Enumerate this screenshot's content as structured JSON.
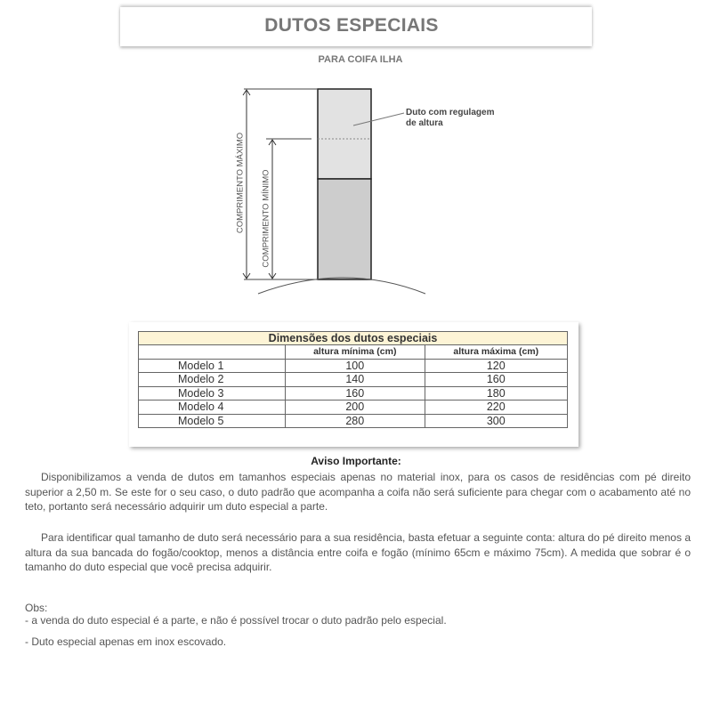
{
  "header": {
    "title": "DUTOS ESPECIAIS",
    "subtitle": "PARA COIFA ILHA"
  },
  "diagram": {
    "label_max": "COMPRIMENTO MÁXIMO",
    "label_min": "COMPRIMENTO MÍNIMO",
    "duct_label_line1": "Duto com regulagem",
    "duct_label_line2": "de altura"
  },
  "table": {
    "caption": "Dimensões dos dutos especiais",
    "columns": [
      "",
      "altura mínima (cm)",
      "altura máxima (cm)"
    ],
    "rows": [
      {
        "model": "Modelo 1",
        "min": "100",
        "max": "120"
      },
      {
        "model": "Modelo 2",
        "min": "140",
        "max": "160"
      },
      {
        "model": "Modelo 3",
        "min": "160",
        "max": "180"
      },
      {
        "model": "Modelo 4",
        "min": "200",
        "max": "220"
      },
      {
        "model": "Modelo 5",
        "min": "280",
        "max": "300"
      }
    ],
    "caption_bg": "#fdf4d6"
  },
  "notice": {
    "title": "Aviso Importante:",
    "paragraph1": "Disponibilizamos a venda de dutos em tamanhos especiais apenas no material inox, para os casos de residências com pé direito superior a 2,50 m. Se este for o seu caso, o duto padrão que acompanha a coifa não será suficiente para chegar com o acabamento até no teto, portanto será necessário adquirir um duto especial a parte.",
    "paragraph2": "Para identificar qual tamanho de duto será necessário para a sua residência, basta efetuar a seguinte conta: altura do pé direito menos a altura da sua bancada do fogão/cooktop, menos a distância entre coifa e fogão (mínimo 65cm e máximo 75cm). A medida que sobrar é o tamanho do duto especial que você precisa adquirir.",
    "obs_label": "Obs:",
    "obs1": "- a venda do duto especial é a parte, e não é possível trocar o duto padrão pelo especial.",
    "obs2": "- Duto especial apenas em inox escovado."
  }
}
